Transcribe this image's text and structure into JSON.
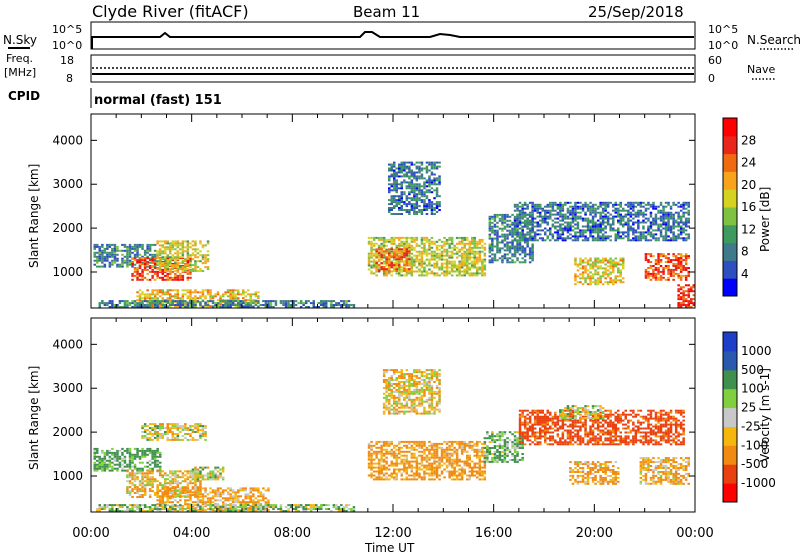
{
  "header": {
    "station": "Clyde River (fitACF)",
    "beam": "Beam 11",
    "date": "25/Sep/2018"
  },
  "panels": {
    "nsky_label": "N.Sky",
    "nsky_ticks": [
      "10^5",
      "10^0"
    ],
    "nsearch_label": "N.Search",
    "nsearch_ticks": [
      "10^5",
      "10^0"
    ],
    "freq_label": "Freq.",
    "freq_unit": "[MHz]",
    "freq_ticks": [
      "18",
      "8"
    ],
    "nave_label": "Nave",
    "nave_ticks": [
      "60",
      "0"
    ],
    "cpid_label": "CPID",
    "cpid_value": "normal (fast) 151"
  },
  "chart_data": [
    {
      "type": "heatmap",
      "title": "Power",
      "ylabel": "Slant Range [km]",
      "xlabel": "Time UT",
      "xlim_hours": [
        0,
        24
      ],
      "ylim": [
        180,
        4600
      ],
      "yticks": [
        "4000",
        "3000",
        "2000",
        "1000"
      ],
      "xticks": [
        "00:00",
        "04:00",
        "08:00",
        "12:00",
        "16:00",
        "20:00",
        "00:00"
      ],
      "colorbar": {
        "label": "Power [dB]",
        "ticks": [
          "28",
          "24",
          "20",
          "16",
          "12",
          "8",
          "4"
        ],
        "colors": [
          "#0000ff",
          "#2d4fc0",
          "#3f7a8a",
          "#3e9a5e",
          "#7fc242",
          "#d6d320",
          "#f7a41c",
          "#f06a12",
          "#e8261a",
          "#ff0000"
        ]
      },
      "regions": [
        {
          "t0": 0.1,
          "t1": 2.6,
          "r0": 1100,
          "r1": 1600,
          "val": 10
        },
        {
          "t0": 1.6,
          "t1": 4.0,
          "r0": 800,
          "r1": 1300,
          "val": 26
        },
        {
          "t0": 2.6,
          "t1": 4.6,
          "r0": 1000,
          "r1": 1700,
          "val": 18
        },
        {
          "t0": 1.8,
          "t1": 6.6,
          "r0": 200,
          "r1": 600,
          "val": 20
        },
        {
          "t0": 0.3,
          "t1": 10.4,
          "r0": 180,
          "r1": 320,
          "val": 10
        },
        {
          "t0": 11.0,
          "t1": 15.6,
          "r0": 900,
          "r1": 1800,
          "val": 18
        },
        {
          "t0": 11.3,
          "t1": 12.6,
          "r0": 1000,
          "r1": 1500,
          "val": 24
        },
        {
          "t0": 11.8,
          "t1": 13.8,
          "r0": 2300,
          "r1": 3500,
          "val": 9
        },
        {
          "t0": 15.8,
          "t1": 17.6,
          "r0": 1200,
          "r1": 2300,
          "val": 10
        },
        {
          "t0": 16.8,
          "t1": 23.8,
          "r0": 1700,
          "r1": 2600,
          "val": 9
        },
        {
          "t0": 19.2,
          "t1": 21.2,
          "r0": 700,
          "r1": 1300,
          "val": 19
        },
        {
          "t0": 22.0,
          "t1": 23.8,
          "r0": 800,
          "r1": 1400,
          "val": 26
        },
        {
          "t0": 23.3,
          "t1": 24.0,
          "r0": 180,
          "r1": 700,
          "val": 28
        }
      ]
    },
    {
      "type": "heatmap",
      "title": "Velocity",
      "ylabel": "Slant Range [km]",
      "xlabel": "Time UT",
      "xlim_hours": [
        0,
        24
      ],
      "ylim": [
        180,
        4600
      ],
      "yticks": [
        "4000",
        "3000",
        "2000",
        "1000"
      ],
      "xticks": [
        "00:00",
        "04:00",
        "08:00",
        "12:00",
        "16:00",
        "20:00",
        "00:00"
      ],
      "colorbar": {
        "label": "Velocity [m s-1]",
        "ticks": [
          "1000",
          "500",
          "100",
          "25",
          "-25",
          "-100",
          "-500",
          "-1000"
        ],
        "colors": [
          "#ff0000",
          "#e8400e",
          "#f08a12",
          "#f5b60e",
          "#c8c8c8",
          "#7fcf3e",
          "#3f8f4e",
          "#2a5ab0",
          "#1d3ec8"
        ]
      },
      "regions": [
        {
          "t0": 0.1,
          "t1": 2.8,
          "r0": 1100,
          "r1": 1600,
          "val": 150
        },
        {
          "t0": 1.4,
          "t1": 4.4,
          "r0": 500,
          "r1": 1100,
          "val": -60
        },
        {
          "t0": 2.6,
          "t1": 7.0,
          "r0": 200,
          "r1": 700,
          "val": -120
        },
        {
          "t0": 4.0,
          "t1": 5.2,
          "r0": 900,
          "r1": 1200,
          "val": 0
        },
        {
          "t0": 2.0,
          "t1": 4.6,
          "r0": 1800,
          "r1": 2200,
          "val": 0
        },
        {
          "t0": 11.0,
          "t1": 15.6,
          "r0": 900,
          "r1": 1800,
          "val": -150
        },
        {
          "t0": 11.6,
          "t1": 13.8,
          "r0": 2400,
          "r1": 3400,
          "val": -60
        },
        {
          "t0": 15.6,
          "t1": 17.2,
          "r0": 1300,
          "r1": 2000,
          "val": 120
        },
        {
          "t0": 17.0,
          "t1": 23.6,
          "r0": 1700,
          "r1": 2500,
          "val": -600
        },
        {
          "t0": 18.6,
          "t1": 20.4,
          "r0": 2300,
          "r1": 2600,
          "val": 0
        },
        {
          "t0": 19.0,
          "t1": 21.0,
          "r0": 800,
          "r1": 1300,
          "val": -120
        },
        {
          "t0": 21.8,
          "t1": 23.8,
          "r0": 800,
          "r1": 1400,
          "val": -110
        },
        {
          "t0": 0.2,
          "t1": 10.4,
          "r0": 180,
          "r1": 320,
          "val": 60
        }
      ]
    }
  ]
}
